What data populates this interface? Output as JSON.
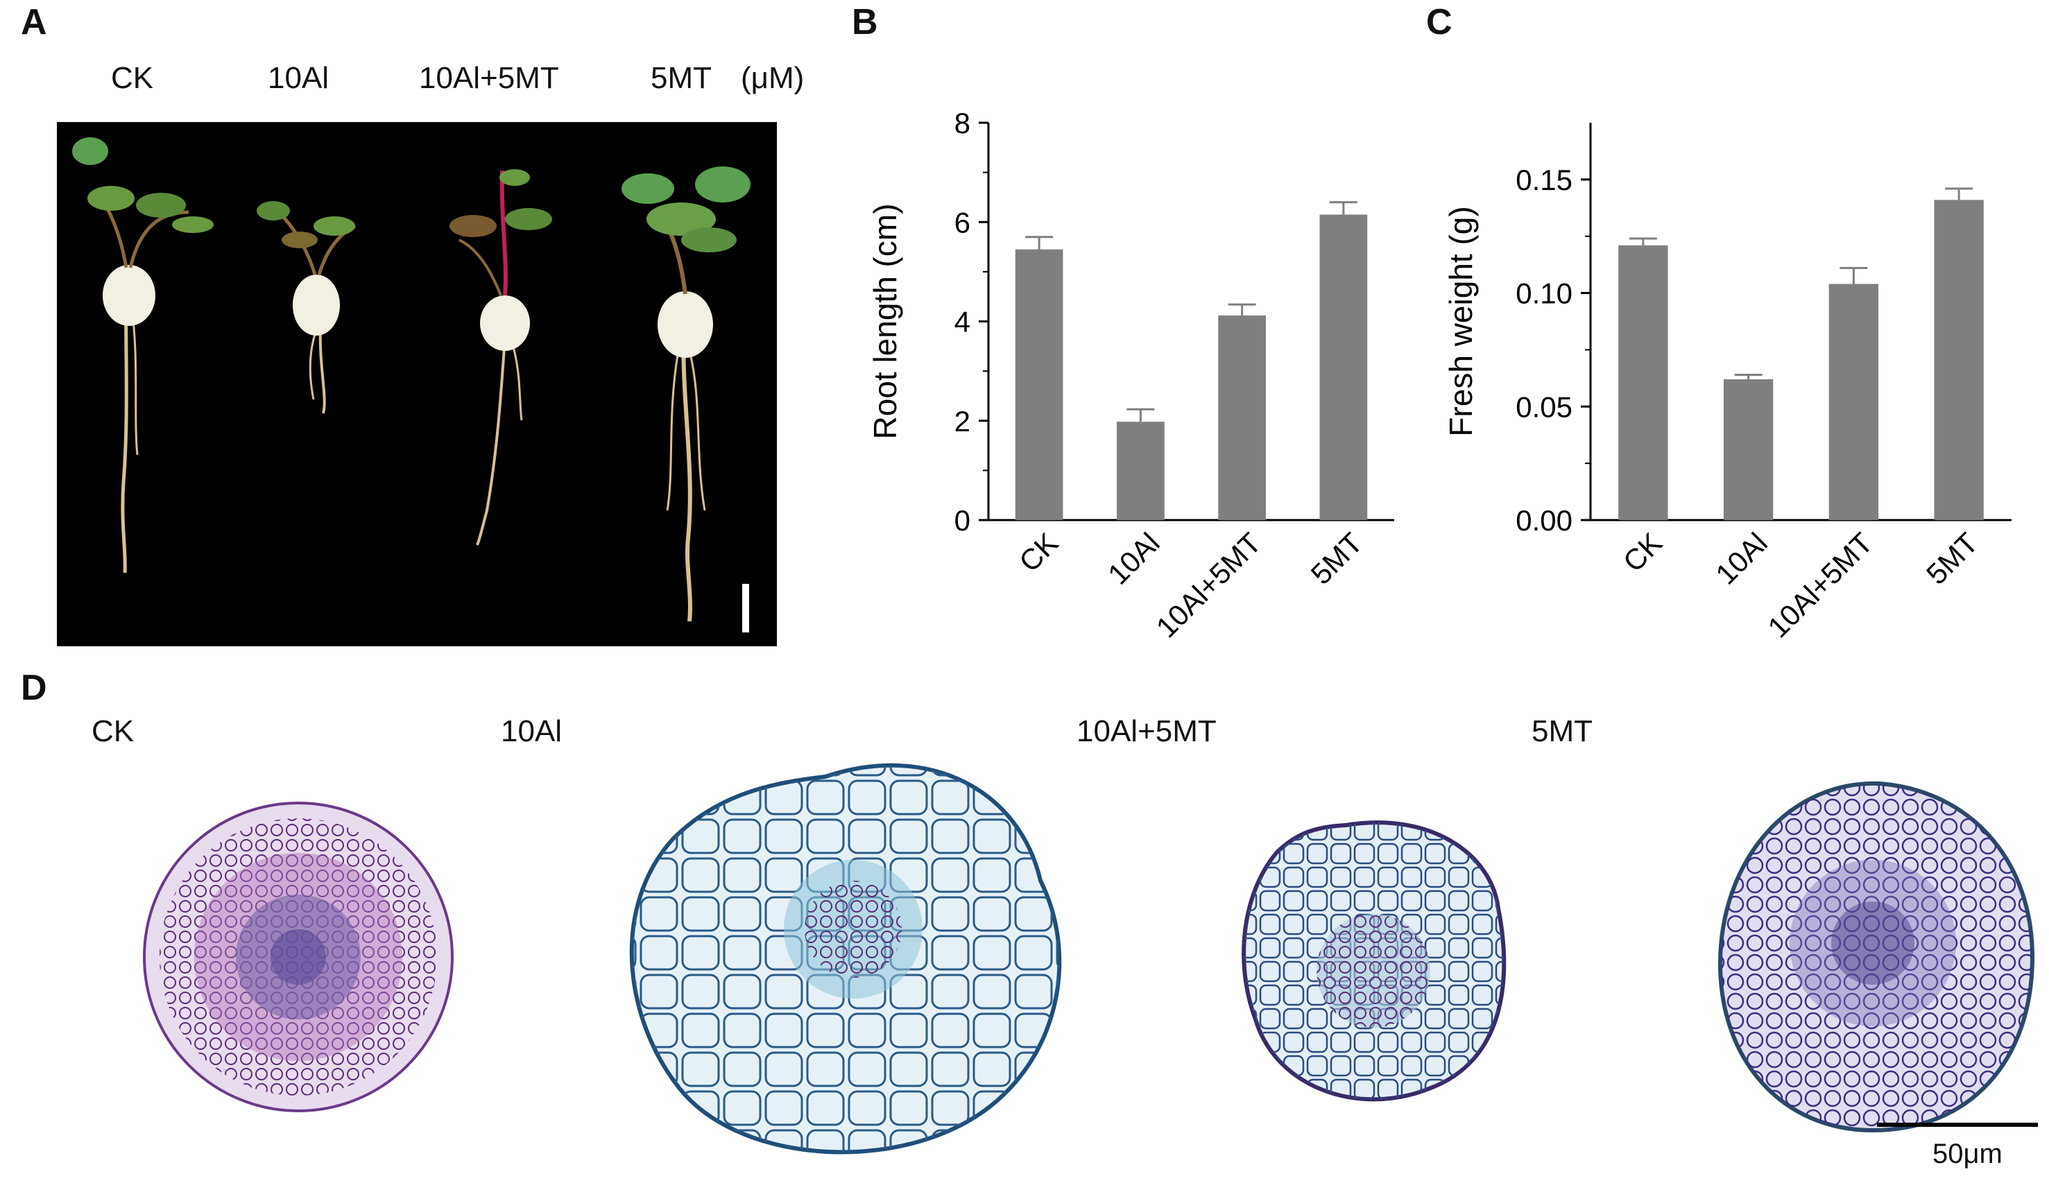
{
  "panels": {
    "a": {
      "letter": "A",
      "labels": [
        "CK",
        "10Al",
        "10Al+5MT",
        "5MT"
      ],
      "unit": "(μM)"
    },
    "b": {
      "letter": "B"
    },
    "c": {
      "letter": "C"
    },
    "d": {
      "letter": "D",
      "labels": [
        "CK",
        "10Al",
        "10Al+5MT",
        "5MT"
      ],
      "scale_bar": "50μm"
    }
  },
  "colors": {
    "bar": "#7f7f7f",
    "photo_background": "#000000",
    "stain_ck": "#b070b8",
    "stain_al": "#8cc4d8",
    "stain_al_mt": "#a8c8dc",
    "stain_mt": "#7a70b8"
  },
  "chart_data": [
    {
      "type": "bar",
      "categories": [
        "CK",
        "10Al",
        "10Al+5MT",
        "5MT"
      ],
      "values": [
        5.45,
        1.98,
        4.12,
        6.15
      ],
      "errors": [
        0.25,
        0.25,
        0.22,
        0.25
      ],
      "ylabel": "Root length (cm)",
      "ylim": [
        0,
        8
      ],
      "yticks": [
        "0",
        "2",
        "4",
        "6",
        "8"
      ],
      "grid": false
    },
    {
      "type": "bar",
      "categories": [
        "CK",
        "10Al",
        "10Al+5MT",
        "5MT"
      ],
      "values": [
        0.121,
        0.062,
        0.104,
        0.141
      ],
      "errors": [
        0.003,
        0.002,
        0.007,
        0.005
      ],
      "ylabel": "Fresh weight (g)",
      "ylim": [
        0,
        0.175
      ],
      "yticks": [
        "0.00",
        "0.05",
        "0.10",
        "0.15"
      ],
      "grid": false
    }
  ]
}
